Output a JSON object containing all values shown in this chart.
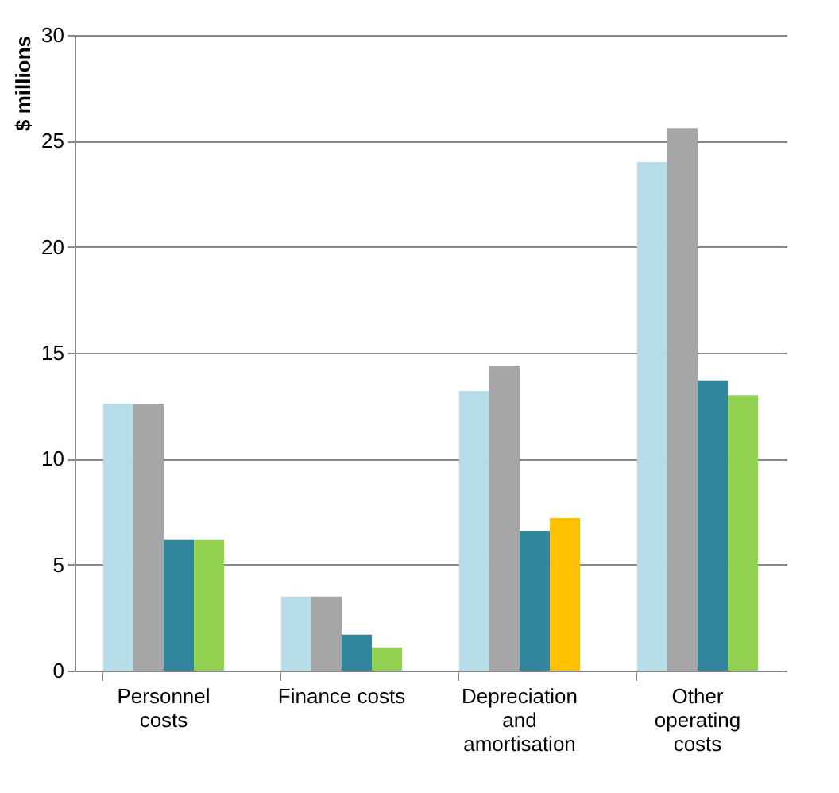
{
  "chart_data": {
    "type": "bar",
    "ylabel": "$ millions",
    "categories": [
      "Personnel costs",
      "Finance costs",
      "Depreciation and amortisation",
      "Other operating costs"
    ],
    "series": [
      {
        "color": "#b7dde8",
        "values": [
          12.6,
          3.5,
          13.2,
          24.0
        ]
      },
      {
        "color": "#a6a6a6",
        "values": [
          12.6,
          3.5,
          14.4,
          25.6
        ]
      },
      {
        "color": "#31859c",
        "values": [
          6.2,
          1.7,
          6.6,
          13.7
        ]
      },
      {
        "colors": [
          "#92d050",
          "#92d050",
          "#ffc000",
          "#92d050"
        ],
        "values": [
          6.2,
          1.1,
          7.2,
          13.0
        ]
      }
    ],
    "ylim": [
      0,
      30
    ],
    "yticks": [
      0,
      5,
      10,
      15,
      20,
      25,
      30
    ],
    "grid": "y"
  }
}
